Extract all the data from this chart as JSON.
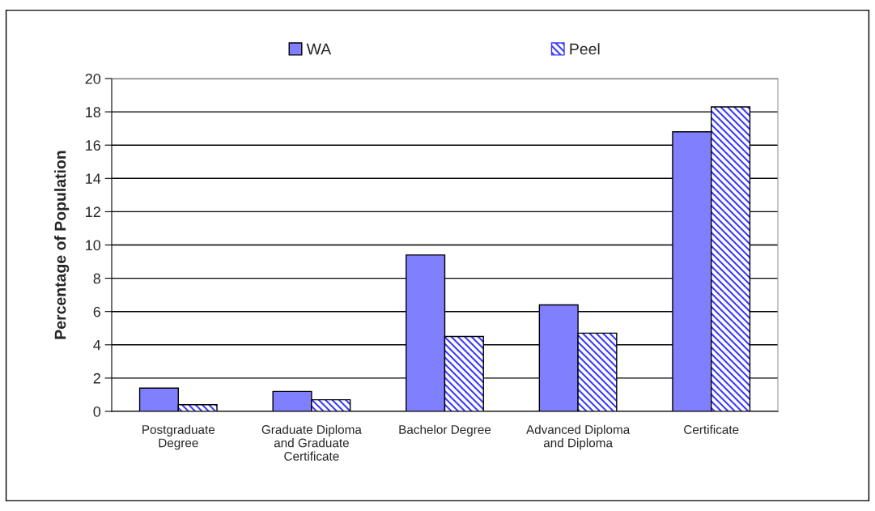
{
  "chart_data": {
    "type": "bar",
    "ylabel": "Percentage of Population",
    "categories": [
      "Postgraduate\nDegree",
      "Graduate Diploma\nand Graduate\nCertificate",
      "Bachelor Degree",
      "Advanced Diploma\nand Diploma",
      "Certificate"
    ],
    "series": [
      {
        "name": "WA",
        "color": "#8080ff",
        "values": [
          1.4,
          1.2,
          9.4,
          6.4,
          16.8
        ]
      },
      {
        "name": "Peel",
        "color": "#3b3bff",
        "values": [
          0.4,
          0.7,
          4.5,
          4.7,
          18.3
        ]
      }
    ],
    "ylim": [
      0,
      20
    ],
    "yticks": [
      0,
      2,
      4,
      6,
      8,
      10,
      12,
      14,
      16,
      18,
      20
    ],
    "grid": "y",
    "legend": "top"
  }
}
